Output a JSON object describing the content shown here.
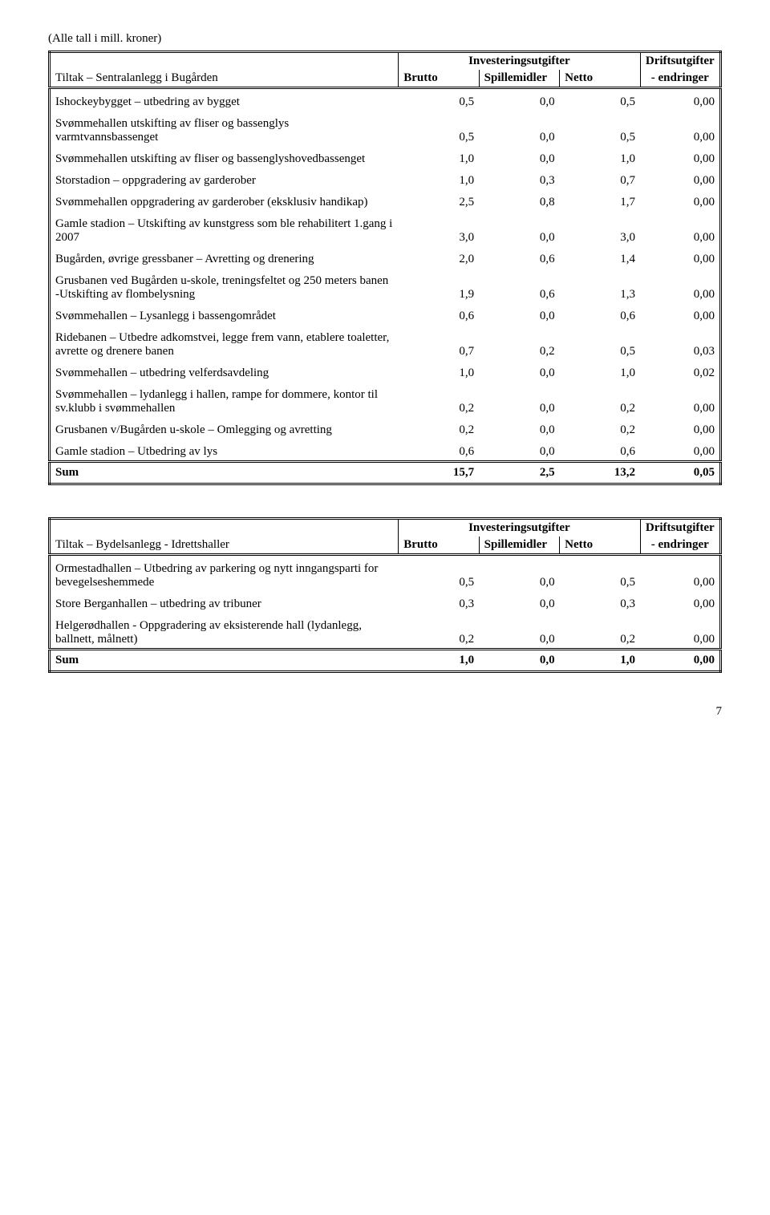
{
  "units_note": "(Alle tall i mill. kroner)",
  "headers": {
    "investeringsutgifter": "Investeringsutgifter",
    "brutto": "Brutto",
    "spillemidler": "Spillemidler",
    "netto": "Netto",
    "driftsutgifter": "Driftsutgifter",
    "endringer": "- endringer",
    "sum": "Sum"
  },
  "table1": {
    "title": "Tiltak – Sentralanlegg i Bugården",
    "rows": [
      {
        "label": "Ishockeybygget – utbedring av bygget",
        "b": "0,5",
        "s": "0,0",
        "n": "0,5",
        "d": "0,00"
      },
      {
        "label": "Svømmehallen utskifting av fliser og bassenglys varmtvannsbassenget",
        "b": "0,5",
        "s": "0,0",
        "n": "0,5",
        "d": "0,00"
      },
      {
        "label": "Svømmehallen utskifting av fliser og bassenglyshovedbassenget",
        "b": "1,0",
        "s": "0,0",
        "n": "1,0",
        "d": "0,00"
      },
      {
        "label": "Storstadion – oppgradering av garderober",
        "b": "1,0",
        "s": "0,3",
        "n": "0,7",
        "d": "0,00"
      },
      {
        "label": "Svømmehallen oppgradering av garderober (eksklusiv handikap)",
        "b": "2,5",
        "s": "0,8",
        "n": "1,7",
        "d": "0,00"
      },
      {
        "label": "Gamle stadion – Utskifting av kunstgress som ble rehabilitert 1.gang i 2007",
        "b": "3,0",
        "s": "0,0",
        "n": "3,0",
        "d": "0,00"
      },
      {
        "label": "Bugården, øvrige gressbaner – Avretting og drenering",
        "b": "2,0",
        "s": "0,6",
        "n": "1,4",
        "d": "0,00"
      },
      {
        "label": "Grusbanen ved Bugården u-skole, treningsfeltet og 250 meters banen -Utskifting av flombelysning",
        "b": "1,9",
        "s": "0,6",
        "n": "1,3",
        "d": "0,00"
      },
      {
        "label": "Svømmehallen – Lysanlegg i bassengområdet",
        "b": "0,6",
        "s": "0,0",
        "n": "0,6",
        "d": "0,00"
      },
      {
        "label": "Ridebanen – Utbedre adkomstvei, legge frem vann, etablere toaletter, avrette og drenere banen",
        "b": "0,7",
        "s": "0,2",
        "n": "0,5",
        "d": "0,03"
      },
      {
        "label": "Svømmehallen – utbedring velferdsavdeling",
        "b": "1,0",
        "s": "0,0",
        "n": "1,0",
        "d": "0,02"
      },
      {
        "label": "Svømmehallen – lydanlegg i hallen, rampe for dommere, kontor til sv.klubb i svømmehallen",
        "b": "0,2",
        "s": "0,0",
        "n": "0,2",
        "d": "0,00"
      },
      {
        "label": "Grusbanen v/Bugården u-skole – Omlegging og avretting",
        "b": "0,2",
        "s": "0,0",
        "n": "0,2",
        "d": "0,00"
      },
      {
        "label": "Gamle stadion – Utbedring av lys",
        "b": "0,6",
        "s": "0,0",
        "n": "0,6",
        "d": "0,00"
      }
    ],
    "sum": {
      "b": "15,7",
      "s": "2,5",
      "n": "13,2",
      "d": "0,05"
    }
  },
  "table2": {
    "title": "Tiltak – Bydelsanlegg - Idrettshaller",
    "rows": [
      {
        "label": "Ormestadhallen – Utbedring av parkering og nytt inngangsparti for bevegelseshemmede",
        "b": "0,5",
        "s": "0,0",
        "n": "0,5",
        "d": "0,00"
      },
      {
        "label": "Store Berganhallen – utbedring av tribuner",
        "b": "0,3",
        "s": "0,0",
        "n": "0,3",
        "d": "0,00"
      },
      {
        "label": "Helgerødhallen - Oppgradering av eksisterende hall (lydanlegg, ballnett, målnett)",
        "b": "0,2",
        "s": "0,0",
        "n": "0,2",
        "d": "0,00"
      }
    ],
    "sum": {
      "b": "1,0",
      "s": "0,0",
      "n": "1,0",
      "d": "0,00"
    }
  },
  "page_number": "7"
}
